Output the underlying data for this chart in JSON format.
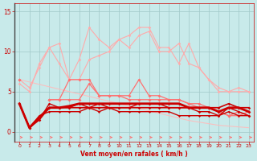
{
  "x": [
    0,
    1,
    2,
    3,
    4,
    5,
    6,
    7,
    8,
    9,
    10,
    11,
    12,
    13,
    14,
    15,
    16,
    17,
    18,
    19,
    20,
    21,
    22,
    23
  ],
  "line_rafales_light1": [
    6.0,
    5.0,
    8.5,
    10.5,
    11.0,
    6.5,
    9.0,
    13.0,
    11.5,
    10.5,
    11.5,
    12.0,
    13.0,
    13.0,
    10.5,
    10.5,
    8.5,
    11.0,
    8.0,
    6.5,
    5.0,
    5.0,
    5.5,
    5.0
  ],
  "line_rafales_light2": [
    6.5,
    5.5,
    8.0,
    10.5,
    8.5,
    6.5,
    6.5,
    9.0,
    9.5,
    10.0,
    11.5,
    10.5,
    12.0,
    12.5,
    10.0,
    10.0,
    11.0,
    8.5,
    8.0,
    6.5,
    5.5,
    5.0,
    5.0,
    5.0
  ],
  "line_slope": [
    6.5,
    6.2,
    5.9,
    5.6,
    5.3,
    5.0,
    4.7,
    4.4,
    4.1,
    3.8,
    3.5,
    3.2,
    2.9,
    2.6,
    2.3,
    2.0,
    1.7,
    1.4,
    1.2,
    1.0,
    0.8,
    0.7,
    0.6,
    0.5
  ],
  "line_vent_medium1": [
    6.5,
    null,
    null,
    4.0,
    4.0,
    6.5,
    6.5,
    6.5,
    4.5,
    4.5,
    4.5,
    4.5,
    6.5,
    4.5,
    4.5,
    4.0,
    4.0,
    3.5,
    3.5,
    3.0,
    2.5,
    2.0,
    2.0,
    2.5
  ],
  "line_vent_medium2": [
    6.5,
    null,
    null,
    4.0,
    4.0,
    4.0,
    4.0,
    6.0,
    4.5,
    4.5,
    4.5,
    4.0,
    4.0,
    4.0,
    4.0,
    4.0,
    4.0,
    3.5,
    3.0,
    3.0,
    2.5,
    2.0,
    2.5,
    2.0
  ],
  "line_dark1": [
    3.5,
    0.5,
    1.5,
    3.5,
    3.0,
    3.0,
    3.5,
    3.0,
    3.5,
    3.0,
    3.0,
    3.0,
    3.5,
    3.5,
    3.5,
    3.0,
    3.0,
    3.0,
    2.5,
    2.5,
    2.0,
    3.0,
    2.5,
    2.0
  ],
  "line_dark2": [
    3.5,
    0.5,
    1.5,
    3.0,
    3.0,
    3.0,
    3.0,
    3.0,
    3.0,
    3.0,
    3.0,
    3.0,
    3.0,
    3.0,
    3.0,
    3.0,
    3.0,
    3.0,
    3.0,
    3.0,
    3.0,
    3.5,
    3.0,
    3.0
  ],
  "line_dark3": [
    3.5,
    0.5,
    2.0,
    2.5,
    2.5,
    2.5,
    2.5,
    3.0,
    2.5,
    3.0,
    2.5,
    2.5,
    2.5,
    2.5,
    2.5,
    2.5,
    2.0,
    2.0,
    2.0,
    2.0,
    2.0,
    2.5,
    2.0,
    2.0
  ],
  "line_dark4": [
    3.5,
    0.5,
    1.8,
    3.0,
    3.0,
    3.2,
    3.5,
    3.5,
    3.5,
    3.5,
    3.5,
    3.5,
    3.5,
    3.5,
    3.5,
    3.5,
    3.5,
    3.0,
    3.0,
    3.0,
    2.5,
    3.0,
    3.0,
    2.5
  ],
  "bg_color": "#c8eaea",
  "grid_color": "#a0c8c8",
  "color_light": "#ffaaaa",
  "color_medium": "#ff7070",
  "color_dark": "#cc0000",
  "color_slope": "#ffbbbb",
  "xlabel": "Vent moyen/en rafales ( km/h )",
  "ylim": [
    -1.2,
    16
  ],
  "xlim": [
    -0.5,
    23.5
  ],
  "yticks": [
    0,
    5,
    10,
    15
  ],
  "xticks": [
    0,
    1,
    2,
    3,
    4,
    5,
    6,
    7,
    8,
    9,
    10,
    11,
    12,
    13,
    14,
    15,
    16,
    17,
    18,
    19,
    20,
    21,
    22,
    23
  ]
}
